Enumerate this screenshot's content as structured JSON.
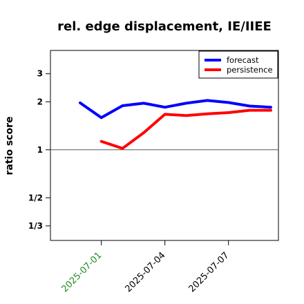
{
  "chart_data": {
    "type": "line",
    "title": "rel. edge displacement, IE/IIEE",
    "xlabel": "",
    "ylabel": "ratio score",
    "y_scale": "log",
    "ylim": [
      0.27,
      4.2
    ],
    "y_ticks": [
      {
        "value": 3,
        "label": "3"
      },
      {
        "value": 2,
        "label": "2"
      },
      {
        "value": 1,
        "label": "1"
      },
      {
        "value": 0.5,
        "label": "1/2"
      },
      {
        "value": 0.3333,
        "label": "1/3"
      }
    ],
    "reference_line": 1,
    "x_ticks": [
      {
        "value": "2025-07-01",
        "label": "2025-07-01",
        "color": "#228B22"
      },
      {
        "value": "2025-07-04",
        "label": "2025-07-04",
        "color": "#000000"
      },
      {
        "value": "2025-07-07",
        "label": "2025-07-07",
        "color": "#000000"
      }
    ],
    "x": [
      "2025-06-30",
      "2025-07-01",
      "2025-07-02",
      "2025-07-03",
      "2025-07-04",
      "2025-07-05",
      "2025-07-06",
      "2025-07-07",
      "2025-07-08",
      "2025-07-09"
    ],
    "series": [
      {
        "name": "forecast",
        "color": "#0000ff",
        "values": [
          1.97,
          1.59,
          1.89,
          1.96,
          1.85,
          1.96,
          2.04,
          1.98,
          1.88,
          1.85
        ]
      },
      {
        "name": "persistence",
        "color": "#ff0000",
        "values": [
          null,
          1.13,
          1.02,
          1.28,
          1.67,
          1.64,
          1.68,
          1.71,
          1.77,
          1.77
        ]
      }
    ],
    "legend_position": "top-right",
    "grid": false
  }
}
